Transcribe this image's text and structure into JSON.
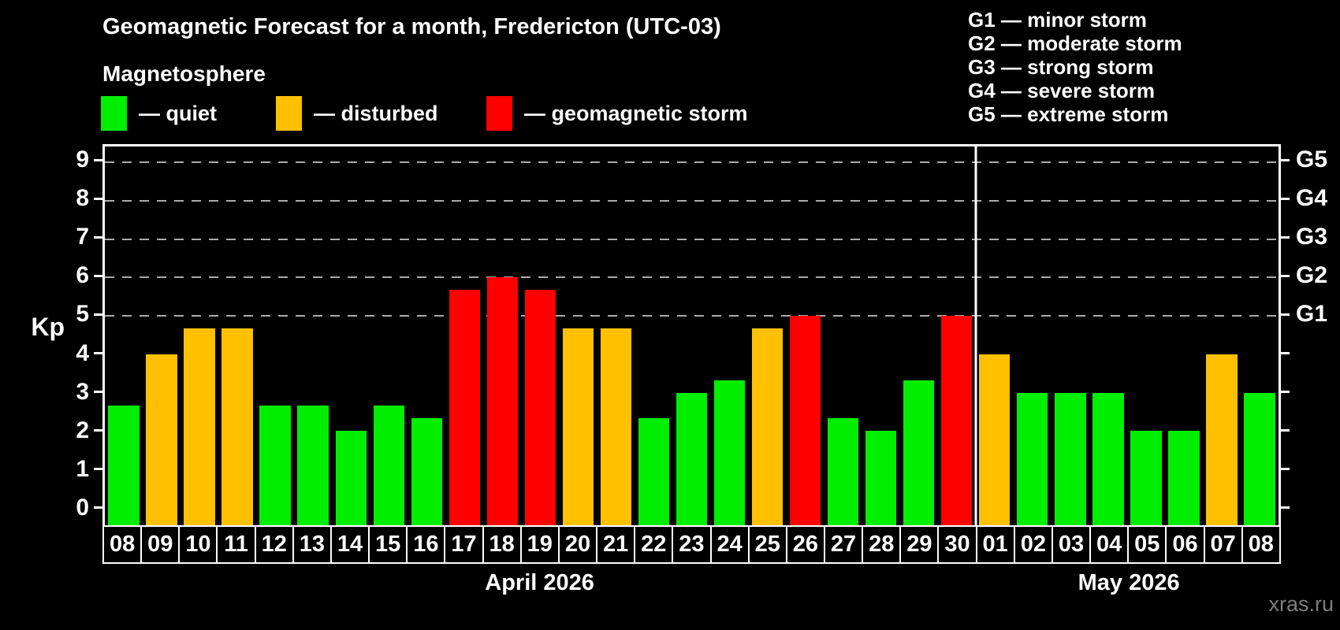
{
  "title": "Geomagnetic Forecast for a month, Fredericton (UTC-03)",
  "subtitle": "Magnetosphere",
  "watermark": "xras.ru",
  "magnetosphere_legend": [
    {
      "status": "quiet",
      "label": "— quiet"
    },
    {
      "status": "disturbed",
      "label": "— disturbed"
    },
    {
      "status": "storm",
      "label": "— geomagnetic storm"
    }
  ],
  "g_scale_legend": [
    "G1 — minor storm",
    "G2 — moderate storm",
    "G3 — strong storm",
    "G4 — severe storm",
    "G5 — extreme storm"
  ],
  "colors": {
    "background": "#000000",
    "text": "#ffffff",
    "axis": "#ffffff",
    "gridline": "#aaaaaa",
    "watermark": "#7e7e7e",
    "quiet": "#00ee00",
    "disturbed": "#ffc000",
    "storm": "#ff0000"
  },
  "chart_data": {
    "type": "bar",
    "title": "Geomagnetic Forecast for a month, Fredericton (UTC-03)",
    "ylabel": "Kp",
    "ylim": [
      -0.45,
      9.41
    ],
    "y_ticks": [
      0,
      1,
      2,
      3,
      4,
      5,
      6,
      7,
      8,
      9
    ],
    "gridlines_at": [
      5,
      6,
      7,
      8,
      9
    ],
    "grid": "dashed horizontal lines at storm levels only",
    "legend_position": "top-left",
    "right_axis_labels": [
      {
        "value": 5,
        "label": "G1"
      },
      {
        "value": 6,
        "label": "G2"
      },
      {
        "value": 7,
        "label": "G3"
      },
      {
        "value": 8,
        "label": "G4"
      },
      {
        "value": 9,
        "label": "G5"
      }
    ],
    "months": [
      {
        "label": "April 2026",
        "days": [
          {
            "day": "08",
            "kp": 2.67,
            "status": "quiet"
          },
          {
            "day": "09",
            "kp": 4.0,
            "status": "disturbed"
          },
          {
            "day": "10",
            "kp": 4.67,
            "status": "disturbed"
          },
          {
            "day": "11",
            "kp": 4.67,
            "status": "disturbed"
          },
          {
            "day": "12",
            "kp": 2.67,
            "status": "quiet"
          },
          {
            "day": "13",
            "kp": 2.67,
            "status": "quiet"
          },
          {
            "day": "14",
            "kp": 2.0,
            "status": "quiet"
          },
          {
            "day": "15",
            "kp": 2.67,
            "status": "quiet"
          },
          {
            "day": "16",
            "kp": 2.33,
            "status": "quiet"
          },
          {
            "day": "17",
            "kp": 5.67,
            "status": "storm"
          },
          {
            "day": "18",
            "kp": 6.0,
            "status": "storm"
          },
          {
            "day": "19",
            "kp": 5.67,
            "status": "storm"
          },
          {
            "day": "20",
            "kp": 4.67,
            "status": "disturbed"
          },
          {
            "day": "21",
            "kp": 4.67,
            "status": "disturbed"
          },
          {
            "day": "22",
            "kp": 2.33,
            "status": "quiet"
          },
          {
            "day": "23",
            "kp": 3.0,
            "status": "quiet"
          },
          {
            "day": "24",
            "kp": 3.33,
            "status": "quiet"
          },
          {
            "day": "25",
            "kp": 4.67,
            "status": "disturbed"
          },
          {
            "day": "26",
            "kp": 5.0,
            "status": "storm"
          },
          {
            "day": "27",
            "kp": 2.33,
            "status": "quiet"
          },
          {
            "day": "28",
            "kp": 2.0,
            "status": "quiet"
          },
          {
            "day": "29",
            "kp": 3.33,
            "status": "quiet"
          },
          {
            "day": "30",
            "kp": 5.0,
            "status": "storm"
          }
        ]
      },
      {
        "label": "May 2026",
        "days": [
          {
            "day": "01",
            "kp": 4.0,
            "status": "disturbed"
          },
          {
            "day": "02",
            "kp": 3.0,
            "status": "quiet"
          },
          {
            "day": "03",
            "kp": 3.0,
            "status": "quiet"
          },
          {
            "day": "04",
            "kp": 3.0,
            "status": "quiet"
          },
          {
            "day": "05",
            "kp": 2.0,
            "status": "quiet"
          },
          {
            "day": "06",
            "kp": 2.0,
            "status": "quiet"
          },
          {
            "day": "07",
            "kp": 4.0,
            "status": "disturbed"
          },
          {
            "day": "08",
            "kp": 3.0,
            "status": "quiet"
          }
        ]
      }
    ]
  }
}
